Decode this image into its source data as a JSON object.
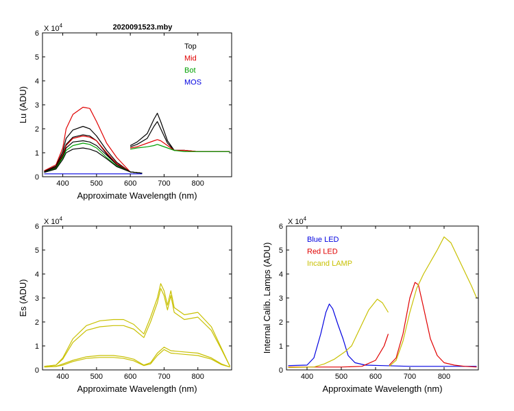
{
  "chart_data": [
    {
      "id": "lu",
      "type": "line",
      "title": "2020091523.mby",
      "xlabel": "Approximate Wavelength (nm)",
      "ylabel": "Lu (ADU)",
      "exponent_label": "X 10",
      "exponent_power": "4",
      "xlim": [
        340,
        900
      ],
      "ylim": [
        0,
        6
      ],
      "xticks": [
        400,
        500,
        600,
        700,
        800
      ],
      "yticks": [
        0,
        1,
        2,
        3,
        4,
        5,
        6
      ],
      "legend": [
        {
          "label": "Top",
          "color": "#000000"
        },
        {
          "label": "Mid",
          "color": "#e00000"
        },
        {
          "label": "Bot",
          "color": "#00a000"
        },
        {
          "label": "MOS",
          "color": "#0000e0"
        }
      ],
      "series": [
        {
          "name": "Mid",
          "color": "#e00000",
          "x": [
            345,
            380,
            400,
            410,
            430,
            460,
            480,
            500,
            530,
            560,
            600,
            635
          ],
          "y": [
            0.25,
            0.5,
            1.2,
            2.0,
            2.6,
            2.9,
            2.85,
            2.3,
            1.4,
            0.8,
            0.2,
            0.15
          ]
        },
        {
          "name": "Top1",
          "color": "#000000",
          "x": [
            345,
            380,
            400,
            410,
            430,
            460,
            480,
            500,
            530,
            560,
            600,
            635
          ],
          "y": [
            0.22,
            0.45,
            1.05,
            1.6,
            1.95,
            2.1,
            2.0,
            1.7,
            1.1,
            0.6,
            0.2,
            0.15
          ]
        },
        {
          "name": "Top2",
          "color": "#000000",
          "x": [
            345,
            380,
            400,
            410,
            430,
            460,
            480,
            500,
            530,
            560,
            600,
            635
          ],
          "y": [
            0.2,
            0.42,
            0.95,
            1.35,
            1.65,
            1.75,
            1.7,
            1.5,
            0.95,
            0.5,
            0.2,
            0.15
          ]
        },
        {
          "name": "Mid2",
          "color": "#e00000",
          "x": [
            345,
            380,
            400,
            410,
            430,
            460,
            480,
            500,
            530,
            560,
            600,
            635
          ],
          "y": [
            0.2,
            0.4,
            0.9,
            1.3,
            1.6,
            1.7,
            1.65,
            1.5,
            1.0,
            0.55,
            0.2,
            0.15
          ]
        },
        {
          "name": "Top3",
          "color": "#000000",
          "x": [
            345,
            380,
            400,
            410,
            430,
            460,
            480,
            500,
            530,
            560,
            600,
            635
          ],
          "y": [
            0.2,
            0.38,
            0.85,
            1.2,
            1.45,
            1.5,
            1.45,
            1.3,
            0.9,
            0.5,
            0.2,
            0.15
          ]
        },
        {
          "name": "Bot",
          "color": "#00a000",
          "x": [
            345,
            380,
            400,
            410,
            430,
            460,
            480,
            500,
            530,
            560,
            600,
            635
          ],
          "y": [
            0.18,
            0.35,
            0.8,
            1.1,
            1.3,
            1.4,
            1.35,
            1.2,
            0.8,
            0.45,
            0.2,
            0.15
          ]
        },
        {
          "name": "Top4",
          "color": "#000000",
          "x": [
            345,
            380,
            400,
            410,
            430,
            460,
            480,
            500,
            530,
            560,
            600,
            635
          ],
          "y": [
            0.18,
            0.32,
            0.72,
            1.0,
            1.15,
            1.2,
            1.15,
            1.05,
            0.75,
            0.42,
            0.2,
            0.15
          ]
        },
        {
          "name": "MOS",
          "color": "#0000e0",
          "x": [
            345,
            500,
            635
          ],
          "y": [
            0.12,
            0.12,
            0.12
          ]
        },
        {
          "name": "TopR1",
          "color": "#000000",
          "x": [
            600,
            620,
            650,
            670,
            680,
            690,
            710,
            730,
            760,
            800,
            850,
            895
          ],
          "y": [
            1.3,
            1.45,
            1.8,
            2.4,
            2.65,
            2.3,
            1.5,
            1.1,
            1.1,
            1.05,
            1.05,
            1.05
          ]
        },
        {
          "name": "TopR2",
          "color": "#000000",
          "x": [
            600,
            620,
            650,
            670,
            680,
            690,
            710,
            730,
            760,
            800,
            850,
            895
          ],
          "y": [
            1.25,
            1.35,
            1.6,
            2.1,
            2.3,
            2.0,
            1.4,
            1.1,
            1.1,
            1.05,
            1.05,
            1.05
          ]
        },
        {
          "name": "MidR",
          "color": "#e00000",
          "x": [
            600,
            620,
            650,
            670,
            680,
            690,
            710,
            730,
            760,
            800,
            850,
            895
          ],
          "y": [
            1.2,
            1.25,
            1.4,
            1.5,
            1.55,
            1.5,
            1.3,
            1.1,
            1.1,
            1.05,
            1.05,
            1.05
          ]
        },
        {
          "name": "BotR",
          "color": "#00a000",
          "x": [
            600,
            620,
            650,
            670,
            680,
            690,
            710,
            730,
            760,
            800,
            850,
            895
          ],
          "y": [
            1.15,
            1.2,
            1.25,
            1.3,
            1.35,
            1.3,
            1.2,
            1.1,
            1.05,
            1.05,
            1.05,
            1.05
          ]
        }
      ]
    },
    {
      "id": "es",
      "type": "line",
      "title": "",
      "xlabel": "Approximate Wavelength (nm)",
      "ylabel": "Es (ADU)",
      "exponent_label": "X 10",
      "exponent_power": "4",
      "xlim": [
        340,
        900
      ],
      "ylim": [
        0,
        6
      ],
      "xticks": [
        400,
        500,
        600,
        700,
        800
      ],
      "yticks": [
        0,
        1,
        2,
        3,
        4,
        5,
        6
      ],
      "legend": [],
      "series": [
        {
          "name": "Es1",
          "color": "#c8c000",
          "x": [
            345,
            380,
            400,
            430,
            470,
            510,
            550,
            580,
            610,
            640,
            660,
            680,
            690,
            700,
            710,
            720,
            730,
            760,
            800,
            840,
            870,
            895
          ],
          "y": [
            0.15,
            0.2,
            0.5,
            1.3,
            1.85,
            2.05,
            2.1,
            2.1,
            1.9,
            1.5,
            2.2,
            3.0,
            3.6,
            3.3,
            2.7,
            3.3,
            2.6,
            2.3,
            2.4,
            1.8,
            0.9,
            0.15
          ]
        },
        {
          "name": "Es2",
          "color": "#c8c000",
          "x": [
            345,
            380,
            400,
            430,
            470,
            510,
            550,
            580,
            610,
            640,
            660,
            680,
            690,
            700,
            710,
            720,
            730,
            760,
            800,
            840,
            870,
            895
          ],
          "y": [
            0.15,
            0.2,
            0.45,
            1.15,
            1.65,
            1.8,
            1.85,
            1.85,
            1.7,
            1.35,
            2.0,
            2.8,
            3.4,
            3.1,
            2.5,
            3.1,
            2.4,
            2.1,
            2.2,
            1.65,
            0.85,
            0.15
          ]
        },
        {
          "name": "Es3",
          "color": "#c8c000",
          "x": [
            345,
            380,
            400,
            430,
            470,
            510,
            550,
            580,
            610,
            640,
            660,
            680,
            700,
            720,
            760,
            800,
            840,
            870,
            895
          ],
          "y": [
            0.12,
            0.15,
            0.25,
            0.4,
            0.55,
            0.6,
            0.6,
            0.55,
            0.45,
            0.2,
            0.3,
            0.7,
            0.95,
            0.8,
            0.75,
            0.7,
            0.5,
            0.25,
            0.12
          ]
        },
        {
          "name": "Es4",
          "color": "#c8c000",
          "x": [
            345,
            380,
            400,
            430,
            470,
            510,
            550,
            580,
            610,
            640,
            660,
            680,
            700,
            720,
            760,
            800,
            840,
            870,
            895
          ],
          "y": [
            0.12,
            0.14,
            0.2,
            0.35,
            0.48,
            0.52,
            0.52,
            0.48,
            0.38,
            0.18,
            0.25,
            0.6,
            0.85,
            0.7,
            0.65,
            0.6,
            0.45,
            0.22,
            0.12
          ]
        }
      ]
    },
    {
      "id": "lamps",
      "type": "line",
      "title": "",
      "xlabel": "Approximate Wavelength (nm)",
      "ylabel": "Internal Calib. Lamps (ADU)",
      "exponent_label": "X 10",
      "exponent_power": "4",
      "xlim": [
        340,
        900
      ],
      "ylim": [
        0,
        6
      ],
      "xticks": [
        400,
        500,
        600,
        700,
        800
      ],
      "yticks": [
        0,
        1,
        2,
        3,
        4,
        5,
        6
      ],
      "legend": [
        {
          "label": "Blue LED",
          "color": "#0000e0"
        },
        {
          "label": "Red LED",
          "color": "#e00000"
        },
        {
          "label": "Incand LAMP",
          "color": "#c8c000"
        }
      ],
      "series": [
        {
          "name": "Blue LED",
          "color": "#0000e0",
          "x": [
            345,
            400,
            420,
            440,
            455,
            465,
            475,
            490,
            505,
            520,
            540,
            570,
            620,
            700,
            800,
            895
          ],
          "y": [
            0.18,
            0.2,
            0.5,
            1.5,
            2.4,
            2.75,
            2.55,
            1.9,
            1.3,
            0.6,
            0.3,
            0.2,
            0.18,
            0.15,
            0.15,
            0.15
          ]
        },
        {
          "name": "Red LED",
          "color": "#e00000",
          "x": [
            345,
            500,
            560,
            600,
            625,
            637
          ],
          "y": [
            0.12,
            0.12,
            0.15,
            0.4,
            1.0,
            1.5
          ]
        },
        {
          "name": "Red LED 2",
          "color": "#e00000",
          "x": [
            640,
            660,
            680,
            700,
            715,
            725,
            740,
            760,
            780,
            800,
            830,
            860,
            895
          ],
          "y": [
            0.2,
            0.5,
            1.5,
            3.0,
            3.65,
            3.55,
            2.6,
            1.3,
            0.6,
            0.3,
            0.2,
            0.15,
            0.12
          ]
        },
        {
          "name": "Incand LAMP",
          "color": "#c8c000",
          "x": [
            345,
            420,
            450,
            480,
            510,
            530,
            550,
            580,
            605,
            620,
            637
          ],
          "y": [
            0.1,
            0.12,
            0.25,
            0.45,
            0.75,
            1.0,
            1.6,
            2.5,
            2.95,
            2.8,
            2.4
          ]
        },
        {
          "name": "Incand LAMP 2",
          "color": "#c8c000",
          "x": [
            640,
            660,
            680,
            700,
            720,
            740,
            760,
            780,
            800,
            820,
            840,
            860,
            880,
            895
          ],
          "y": [
            0.15,
            0.4,
            1.2,
            2.4,
            3.4,
            4.0,
            4.5,
            5.0,
            5.55,
            5.3,
            4.7,
            4.1,
            3.5,
            3.0
          ]
        }
      ]
    }
  ]
}
